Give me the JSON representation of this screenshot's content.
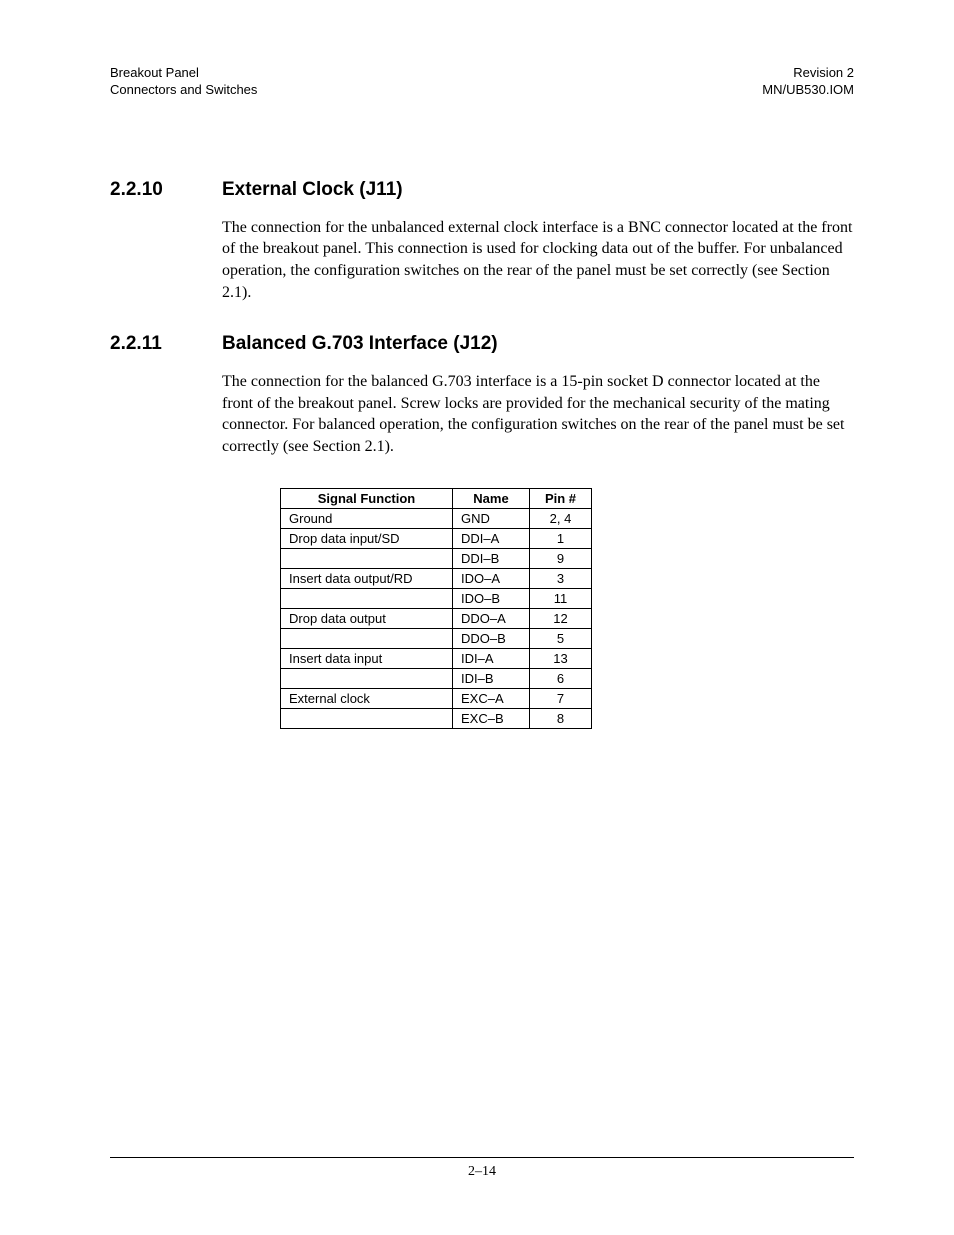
{
  "header": {
    "left_line1": "Breakout Panel",
    "left_line2": "Connectors and Switches",
    "right_line1": "Revision 2",
    "right_line2": "MN/UB530.IOM"
  },
  "sections": [
    {
      "number": "2.2.10",
      "title": "External Clock (J11)",
      "body": "The connection for the unbalanced external clock interface is a BNC connector  located at the front of the breakout panel. This connection is used for clocking data out of the buffer. For unbalanced operation, the configuration switches on the rear of the panel must be set correctly (see Section 2.1)."
    },
    {
      "number": "2.2.11",
      "title": "Balanced G.703 Interface (J12)",
      "body": "The connection for the balanced G.703 interface is a 15-pin socket D connector located at the front of the breakout panel. Screw locks are provided for the mechanical security of the mating connector. For balanced operation, the configuration switches on the rear of the panel must be set correctly (see Section 2.1)."
    }
  ],
  "table": {
    "columns": [
      "Signal Function",
      "Name",
      "Pin #"
    ],
    "rows": [
      [
        "Ground",
        "GND",
        "2, 4"
      ],
      [
        "Drop data input/SD",
        "DDI–A",
        "1"
      ],
      [
        "",
        "DDI–B",
        "9"
      ],
      [
        "Insert data output/RD",
        "IDO–A",
        "3"
      ],
      [
        "",
        "IDO–B",
        "11"
      ],
      [
        "Drop data output",
        "DDO–A",
        "12"
      ],
      [
        "",
        "DDO–B",
        "5"
      ],
      [
        "Insert data input",
        "IDI–A",
        "13"
      ],
      [
        "",
        "IDI–B",
        "6"
      ],
      [
        "External clock",
        "EXC–A",
        "7"
      ],
      [
        "",
        "EXC–B",
        "8"
      ]
    ]
  },
  "footer": {
    "page_number": "2–14"
  }
}
